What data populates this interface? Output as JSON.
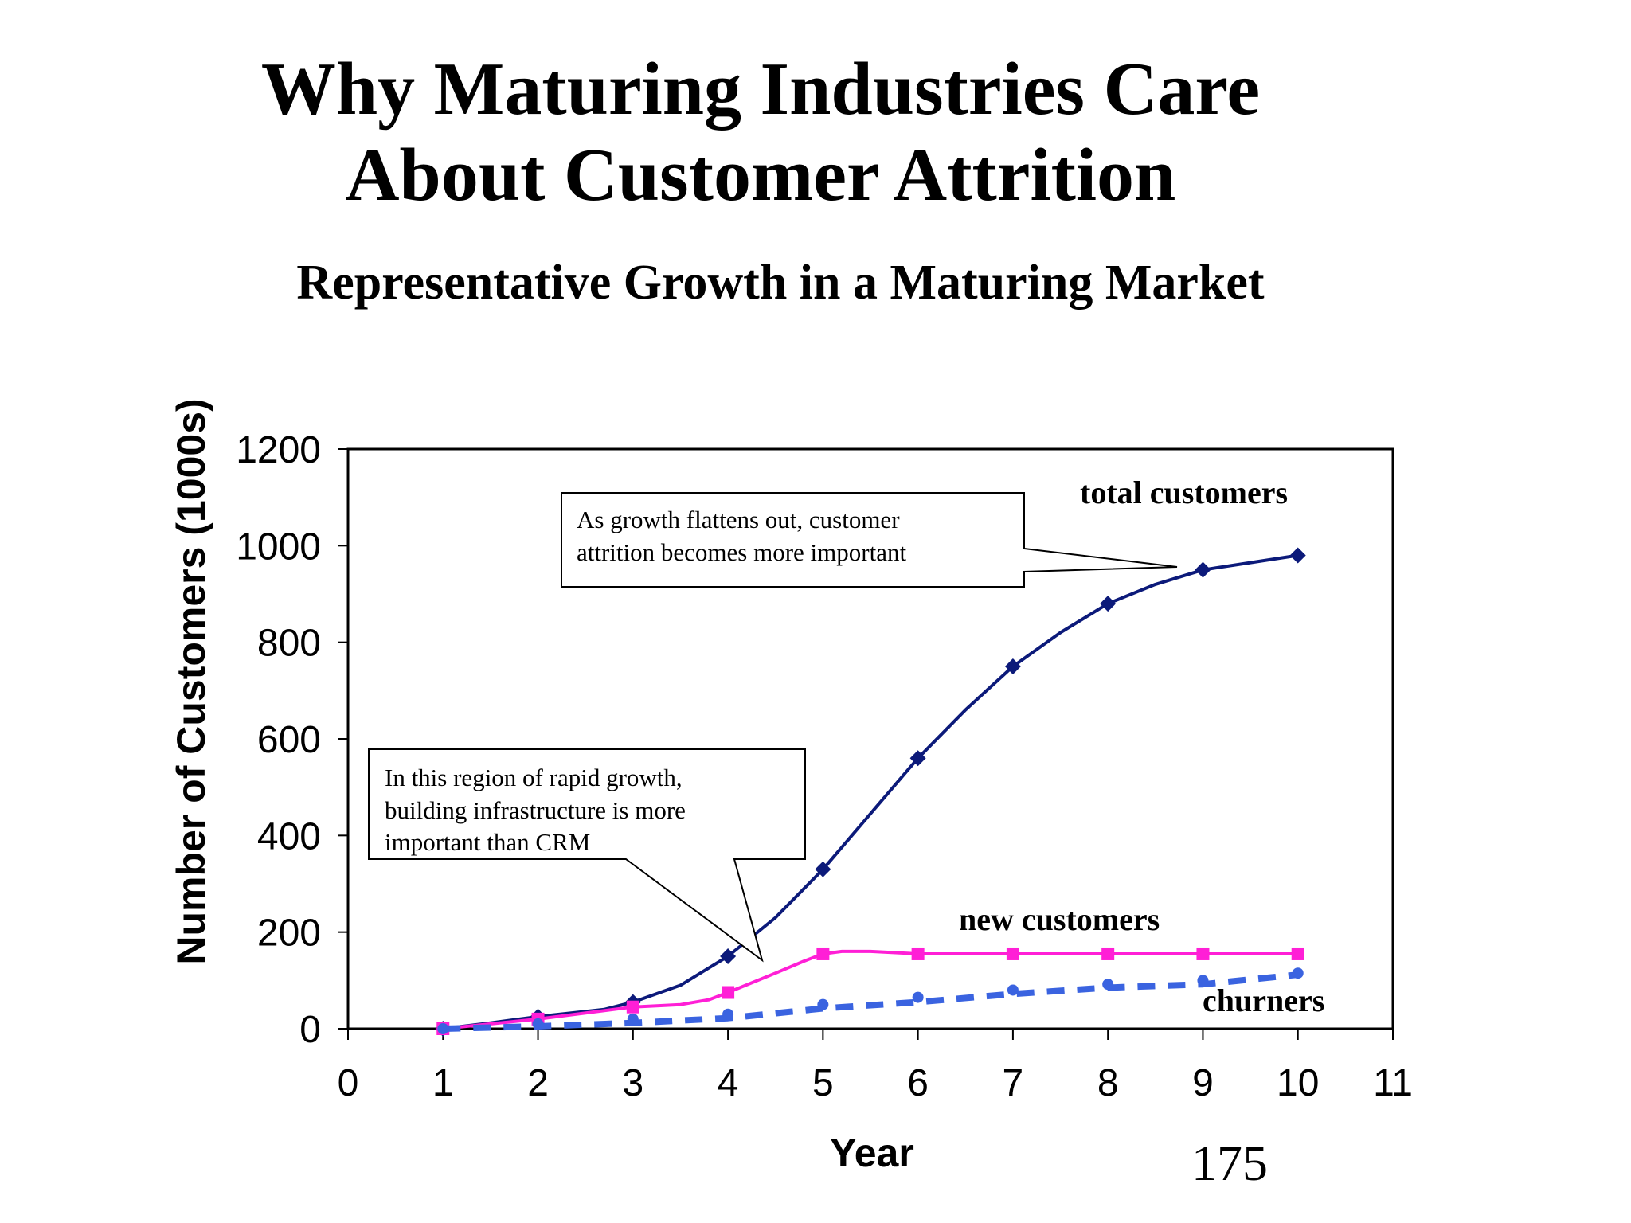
{
  "slide": {
    "title_line1": "Why Maturing Industries Care",
    "title_line2": "About Customer Attrition",
    "subtitle": "Representative Growth in a Maturing Market",
    "page_number": "175"
  },
  "chart_data": {
    "type": "line",
    "title": "",
    "xlabel": "Year",
    "ylabel": "Number of Customers (1000s)",
    "xlim": [
      0,
      11
    ],
    "ylim": [
      0,
      1200
    ],
    "x_ticks": [
      "0",
      "1",
      "2",
      "3",
      "4",
      "5",
      "6",
      "7",
      "8",
      "9",
      "10",
      "11"
    ],
    "y_ticks": [
      "0",
      "200",
      "400",
      "600",
      "800",
      "1000",
      "1200"
    ],
    "grid": false,
    "legend": "none",
    "series": [
      {
        "name": "total customers",
        "color": "#0c1a7a",
        "marker": "diamond",
        "style": "solid",
        "x": [
          1,
          2,
          3,
          4,
          5,
          6,
          7,
          8,
          9,
          10
        ],
        "values": [
          0,
          25,
          55,
          150,
          330,
          560,
          750,
          880,
          950,
          980
        ],
        "curve": [
          [
            1,
            0
          ],
          [
            1.5,
            12
          ],
          [
            2,
            25
          ],
          [
            2.7,
            40
          ],
          [
            3,
            55
          ],
          [
            3.5,
            90
          ],
          [
            4,
            150
          ],
          [
            4.5,
            230
          ],
          [
            5,
            330
          ],
          [
            5.5,
            445
          ],
          [
            6,
            560
          ],
          [
            6.5,
            660
          ],
          [
            7,
            750
          ],
          [
            7.5,
            820
          ],
          [
            8,
            880
          ],
          [
            8.5,
            920
          ],
          [
            9,
            950
          ],
          [
            9.5,
            965
          ],
          [
            10,
            980
          ]
        ]
      },
      {
        "name": "new customers",
        "color": "#ff1fd6",
        "marker": "square",
        "style": "solid",
        "x": [
          1,
          2,
          3,
          4,
          5,
          6,
          7,
          8,
          9,
          10
        ],
        "values": [
          0,
          20,
          45,
          75,
          155,
          155,
          155,
          155,
          155,
          155
        ],
        "curve": [
          [
            1,
            0
          ],
          [
            2,
            20
          ],
          [
            3,
            45
          ],
          [
            3.5,
            50
          ],
          [
            3.8,
            60
          ],
          [
            4,
            75
          ],
          [
            4.5,
            115
          ],
          [
            4.8,
            140
          ],
          [
            5,
            155
          ],
          [
            5.2,
            160
          ],
          [
            5.5,
            160
          ],
          [
            6,
            155
          ],
          [
            7,
            155
          ],
          [
            8,
            155
          ],
          [
            9,
            155
          ],
          [
            10,
            155
          ]
        ]
      },
      {
        "name": "churners",
        "color": "#3a63e0",
        "marker": "circle",
        "style": "dashed",
        "x": [
          1,
          2,
          3,
          4,
          5,
          6,
          7,
          8,
          9,
          10
        ],
        "values": [
          0,
          10,
          20,
          30,
          50,
          65,
          80,
          92,
          100,
          115
        ],
        "curve": [
          [
            1,
            0
          ],
          [
            2,
            5
          ],
          [
            3,
            12
          ],
          [
            4,
            22
          ],
          [
            5,
            42
          ],
          [
            6,
            55
          ],
          [
            7,
            72
          ],
          [
            8,
            85
          ],
          [
            9,
            92
          ],
          [
            10,
            112
          ]
        ]
      }
    ],
    "annotations": [
      {
        "id": "late",
        "lines": [
          "As growth flattens out, customer",
          "attrition becomes more important"
        ]
      },
      {
        "id": "early",
        "lines": [
          "In this region of rapid growth,",
          "building infrastructure is more",
          "important than CRM"
        ]
      }
    ]
  }
}
